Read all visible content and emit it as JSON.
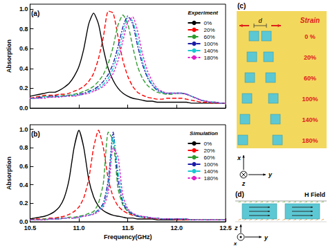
{
  "chart_data": [
    {
      "type": "line",
      "title": "(a)",
      "annotations": [
        "Experiment"
      ],
      "ylabel": "Absorption",
      "tick_labels": "y",
      "grid": false,
      "legend": "upper right",
      "x": [
        10.5,
        10.55,
        10.6,
        10.65,
        10.7,
        10.75,
        10.8,
        10.85,
        10.9,
        10.95,
        11.0,
        11.05,
        11.1,
        11.15,
        11.2,
        11.25,
        11.3,
        11.35,
        11.4,
        11.45,
        11.5,
        11.55,
        11.6,
        11.65,
        11.7,
        11.75,
        11.8,
        11.85,
        11.9,
        11.95,
        12.0,
        12.05,
        12.1,
        12.15,
        12.2,
        12.25,
        12.3,
        12.35,
        12.4,
        12.45,
        12.5
      ],
      "xlim": [
        10.5,
        12.5
      ],
      "xticks": [
        10.5,
        {
          "value": 11,
          "label": "11.0"
        },
        11.5,
        {
          "value": 12,
          "label": "12.0"
        },
        12.5
      ],
      "ylim": [
        0,
        1.05
      ],
      "yticks": [
        {
          "value": 0,
          "label": "0.0"
        },
        0.2,
        0.4,
        0.6,
        0.8,
        {
          "value": 1,
          "label": "1.0"
        }
      ],
      "series": [
        {
          "name": "0%",
          "color": "#000000",
          "line_style": "solid",
          "values": [
            0.12,
            0.13,
            0.14,
            0.15,
            0.16,
            0.16,
            0.18,
            0.21,
            0.25,
            0.32,
            0.42,
            0.6,
            0.85,
            0.96,
            0.85,
            0.6,
            0.4,
            0.28,
            0.2,
            0.15,
            0.12,
            0.1,
            0.09,
            0.08,
            0.07,
            0.07,
            0.06,
            0.06,
            0.06,
            0.06,
            0.06,
            0.06,
            0.06,
            0.05,
            0.05,
            0.05,
            0.05,
            0.05,
            0.05,
            0.05,
            0.05
          ]
        },
        {
          "name": "20%",
          "color": "#ff0000",
          "line_style": "dashed",
          "values": [
            0.1,
            0.11,
            0.12,
            0.13,
            0.13,
            0.13,
            0.14,
            0.14,
            0.15,
            0.17,
            0.19,
            0.22,
            0.27,
            0.35,
            0.5,
            0.72,
            0.98,
            0.96,
            0.72,
            0.48,
            0.32,
            0.22,
            0.16,
            0.13,
            0.11,
            0.1,
            0.09,
            0.09,
            0.1,
            0.1,
            0.1,
            0.1,
            0.09,
            0.08,
            0.07,
            0.06,
            0.06,
            0.05,
            0.05,
            0.05,
            0.05
          ]
        },
        {
          "name": "60%",
          "color": "#2e9b2e",
          "line_style": "dashed",
          "values": [
            0.1,
            0.1,
            0.11,
            0.12,
            0.12,
            0.12,
            0.12,
            0.13,
            0.13,
            0.14,
            0.15,
            0.17,
            0.19,
            0.22,
            0.27,
            0.34,
            0.45,
            0.62,
            0.84,
            0.94,
            0.85,
            0.62,
            0.42,
            0.3,
            0.23,
            0.19,
            0.16,
            0.15,
            0.14,
            0.14,
            0.15,
            0.15,
            0.14,
            0.12,
            0.1,
            0.08,
            0.07,
            0.06,
            0.06,
            0.05,
            0.05
          ]
        },
        {
          "name": "100%",
          "color": "#1c1ca8",
          "line_style": "dashdot",
          "values": [
            0.1,
            0.1,
            0.11,
            0.11,
            0.12,
            0.12,
            0.12,
            0.12,
            0.13,
            0.13,
            0.14,
            0.15,
            0.17,
            0.19,
            0.22,
            0.27,
            0.34,
            0.45,
            0.62,
            0.82,
            0.93,
            0.85,
            0.63,
            0.44,
            0.31,
            0.23,
            0.18,
            0.16,
            0.15,
            0.15,
            0.15,
            0.15,
            0.14,
            0.12,
            0.1,
            0.08,
            0.07,
            0.06,
            0.06,
            0.05,
            0.05
          ]
        },
        {
          "name": "140%",
          "color": "#19c8d2",
          "line_style": "dashdot",
          "values": [
            0.1,
            0.1,
            0.1,
            0.11,
            0.11,
            0.11,
            0.12,
            0.12,
            0.12,
            0.13,
            0.13,
            0.14,
            0.16,
            0.18,
            0.2,
            0.24,
            0.3,
            0.4,
            0.55,
            0.75,
            0.91,
            0.88,
            0.7,
            0.48,
            0.33,
            0.24,
            0.19,
            0.16,
            0.15,
            0.15,
            0.15,
            0.15,
            0.14,
            0.12,
            0.1,
            0.08,
            0.07,
            0.06,
            0.06,
            0.05,
            0.05
          ]
        },
        {
          "name": "180%",
          "color": "#e020c8",
          "line_style": "shortdash",
          "values": [
            0.1,
            0.1,
            0.1,
            0.1,
            0.11,
            0.11,
            0.11,
            0.12,
            0.12,
            0.12,
            0.13,
            0.14,
            0.15,
            0.17,
            0.19,
            0.22,
            0.27,
            0.35,
            0.48,
            0.68,
            0.87,
            0.92,
            0.78,
            0.55,
            0.38,
            0.27,
            0.2,
            0.17,
            0.15,
            0.15,
            0.15,
            0.15,
            0.14,
            0.12,
            0.1,
            0.08,
            0.07,
            0.06,
            0.06,
            0.05,
            0.05
          ]
        }
      ]
    },
    {
      "type": "line",
      "title": "(b)",
      "annotations": [
        "Simulation"
      ],
      "ylabel": "Absorption",
      "xlabel": "Frequency(GHz)",
      "tick_labels": true,
      "grid": false,
      "legend": "upper right",
      "x": [
        10.5,
        10.55,
        10.6,
        10.65,
        10.7,
        10.75,
        10.8,
        10.85,
        10.9,
        10.95,
        11.0,
        11.05,
        11.1,
        11.15,
        11.2,
        11.25,
        11.3,
        11.35,
        11.4,
        11.45,
        11.5,
        11.55,
        11.6,
        11.65,
        11.7,
        11.75,
        11.8,
        11.85,
        11.9,
        11.95,
        12.0,
        12.05,
        12.1,
        12.15,
        12.2,
        12.25,
        12.3,
        12.35,
        12.4,
        12.45,
        12.5
      ],
      "xlim": [
        10.5,
        12.5
      ],
      "xticks": [
        10.5,
        {
          "value": 11,
          "label": "11.0"
        },
        11.5,
        {
          "value": 12,
          "label": "12.0"
        },
        12.5
      ],
      "ylim": [
        0,
        1.05
      ],
      "yticks": [
        {
          "value": 0,
          "label": "0.0"
        },
        0.2,
        0.4,
        0.6,
        0.8,
        {
          "value": 1,
          "label": "1.0"
        }
      ],
      "series": [
        {
          "name": "0%",
          "color": "#000000",
          "line_style": "solid",
          "values": [
            0.03,
            0.04,
            0.05,
            0.06,
            0.08,
            0.11,
            0.16,
            0.26,
            0.46,
            0.8,
            0.99,
            0.8,
            0.46,
            0.27,
            0.17,
            0.12,
            0.09,
            0.07,
            0.06,
            0.05,
            0.04,
            0.04,
            0.03,
            0.03,
            0.03,
            0.03,
            0.02,
            0.02,
            0.02,
            0.02,
            0.02,
            0.02,
            0.02,
            0.02,
            0.02,
            0.02,
            0.02,
            0.02,
            0.02,
            0.02,
            0.02
          ]
        },
        {
          "name": "20%",
          "color": "#ff0000",
          "line_style": "dashed",
          "values": [
            0.02,
            0.03,
            0.03,
            0.03,
            0.04,
            0.04,
            0.05,
            0.06,
            0.08,
            0.11,
            0.16,
            0.26,
            0.46,
            0.8,
            0.99,
            0.8,
            0.46,
            0.27,
            0.17,
            0.12,
            0.09,
            0.07,
            0.06,
            0.05,
            0.04,
            0.04,
            0.03,
            0.03,
            0.03,
            0.03,
            0.02,
            0.02,
            0.02,
            0.02,
            0.02,
            0.02,
            0.02,
            0.02,
            0.02,
            0.02,
            0.02
          ]
        },
        {
          "name": "60%",
          "color": "#2e9b2e",
          "line_style": "dashed",
          "values": [
            0.02,
            0.02,
            0.02,
            0.03,
            0.03,
            0.03,
            0.04,
            0.04,
            0.05,
            0.05,
            0.06,
            0.07,
            0.09,
            0.11,
            0.2,
            0.42,
            0.97,
            0.88,
            0.36,
            0.18,
            0.11,
            0.08,
            0.06,
            0.05,
            0.05,
            0.04,
            0.04,
            0.03,
            0.03,
            0.03,
            0.03,
            0.03,
            0.03,
            0.02,
            0.02,
            0.02,
            0.02,
            0.02,
            0.02,
            0.02,
            0.02
          ]
        },
        {
          "name": "100%",
          "color": "#1c1ca8",
          "line_style": "dashdot",
          "values": [
            0.02,
            0.02,
            0.02,
            0.02,
            0.03,
            0.03,
            0.03,
            0.04,
            0.04,
            0.04,
            0.05,
            0.06,
            0.07,
            0.09,
            0.13,
            0.2,
            0.45,
            0.97,
            0.45,
            0.2,
            0.12,
            0.08,
            0.06,
            0.05,
            0.05,
            0.04,
            0.04,
            0.03,
            0.03,
            0.03,
            0.03,
            0.03,
            0.03,
            0.02,
            0.02,
            0.02,
            0.02,
            0.02,
            0.02,
            0.02,
            0.02
          ]
        },
        {
          "name": "140%",
          "color": "#19c8d2",
          "line_style": "dashdot",
          "values": [
            0.02,
            0.02,
            0.02,
            0.02,
            0.03,
            0.03,
            0.03,
            0.04,
            0.04,
            0.04,
            0.05,
            0.06,
            0.07,
            0.09,
            0.12,
            0.18,
            0.38,
            0.92,
            0.55,
            0.23,
            0.13,
            0.09,
            0.07,
            0.05,
            0.05,
            0.04,
            0.04,
            0.03,
            0.03,
            0.03,
            0.03,
            0.03,
            0.03,
            0.02,
            0.02,
            0.02,
            0.02,
            0.02,
            0.02,
            0.02,
            0.02
          ]
        },
        {
          "name": "180%",
          "color": "#e020c8",
          "line_style": "shortdash",
          "values": [
            0.02,
            0.02,
            0.02,
            0.02,
            0.03,
            0.03,
            0.03,
            0.04,
            0.04,
            0.04,
            0.05,
            0.06,
            0.07,
            0.08,
            0.11,
            0.16,
            0.32,
            0.8,
            0.7,
            0.28,
            0.14,
            0.09,
            0.07,
            0.06,
            0.05,
            0.04,
            0.04,
            0.03,
            0.03,
            0.03,
            0.03,
            0.03,
            0.03,
            0.02,
            0.02,
            0.02,
            0.02,
            0.02,
            0.02,
            0.02,
            0.02
          ]
        }
      ]
    }
  ],
  "diagrams": {
    "c": {
      "label": "(c)",
      "spacing_label": "d",
      "heading": "Strain",
      "strains": [
        "0 %",
        "20%",
        "60%",
        "100%",
        "140%",
        "180%"
      ],
      "axes": {
        "up": "x",
        "right": "y",
        "into_page": "z"
      }
    },
    "d": {
      "label": "(d)",
      "title": "H Field",
      "axes": {
        "up": "z",
        "right": "y",
        "out_of_page": "x"
      }
    }
  }
}
